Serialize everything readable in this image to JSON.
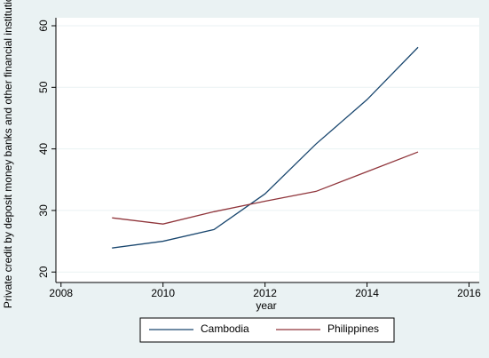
{
  "chart_data": {
    "type": "line",
    "x": [
      2009,
      2010,
      2011,
      2012,
      2013,
      2014,
      2015
    ],
    "series": [
      {
        "name": "Cambodia",
        "color": "#1a476f",
        "values": [
          23.9,
          25.0,
          26.9,
          32.7,
          40.8,
          48.0,
          56.5
        ]
      },
      {
        "name": "Philippines",
        "color": "#90353b",
        "values": [
          28.8,
          27.8,
          29.8,
          31.5,
          33.1,
          36.3,
          39.5
        ]
      }
    ],
    "xlabel": "year",
    "ylabel": "Private credit by deposit money banks and other financial institutions",
    "xlim": [
      2007.9,
      2016.2
    ],
    "xticks": [
      2008,
      2010,
      2012,
      2014,
      2016
    ],
    "ylim": [
      18.3,
      61.3
    ],
    "yticks": [
      20,
      30,
      40,
      50,
      60
    ],
    "grid": true,
    "legend": "bottom"
  }
}
